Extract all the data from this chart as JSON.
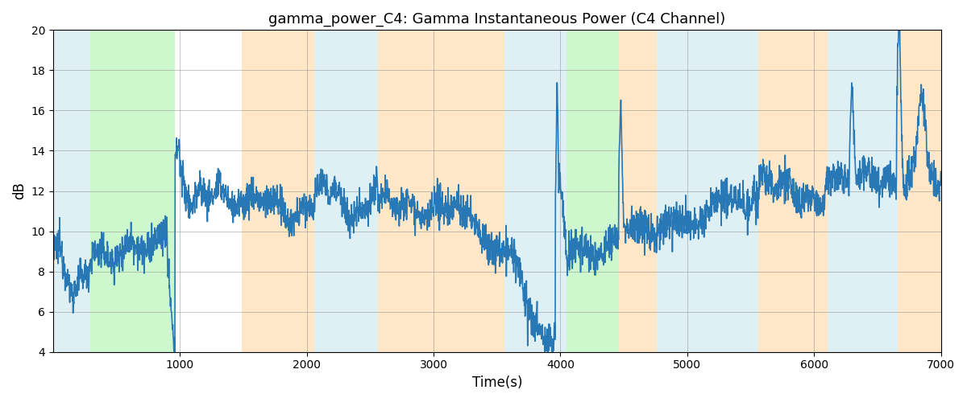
{
  "title": "gamma_power_C4: Gamma Instantaneous Power (C4 Channel)",
  "xlabel": "Time(s)",
  "ylabel": "dB",
  "xlim": [
    0,
    7000
  ],
  "ylim": [
    4,
    20
  ],
  "yticks": [
    4,
    6,
    8,
    10,
    12,
    14,
    16,
    18,
    20
  ],
  "xticks": [
    1000,
    2000,
    3000,
    4000,
    5000,
    6000,
    7000
  ],
  "line_color": "#2878b5",
  "line_width": 1.2,
  "bg_bands": [
    {
      "xmin": 0,
      "xmax": 290,
      "color": "#add8e6",
      "alpha": 0.38
    },
    {
      "xmin": 290,
      "xmax": 960,
      "color": "#90ee90",
      "alpha": 0.45
    },
    {
      "xmin": 1490,
      "xmax": 2060,
      "color": "#ffd59a",
      "alpha": 0.55
    },
    {
      "xmin": 2060,
      "xmax": 2560,
      "color": "#add8e6",
      "alpha": 0.38
    },
    {
      "xmin": 2560,
      "xmax": 3560,
      "color": "#ffd59a",
      "alpha": 0.55
    },
    {
      "xmin": 3560,
      "xmax": 4050,
      "color": "#add8e6",
      "alpha": 0.38
    },
    {
      "xmin": 4050,
      "xmax": 4460,
      "color": "#90ee90",
      "alpha": 0.45
    },
    {
      "xmin": 4460,
      "xmax": 4760,
      "color": "#ffd59a",
      "alpha": 0.55
    },
    {
      "xmin": 4760,
      "xmax": 5560,
      "color": "#add8e6",
      "alpha": 0.38
    },
    {
      "xmin": 5560,
      "xmax": 6110,
      "color": "#ffd59a",
      "alpha": 0.55
    },
    {
      "xmin": 6110,
      "xmax": 6660,
      "color": "#add8e6",
      "alpha": 0.38
    },
    {
      "xmin": 6660,
      "xmax": 7000,
      "color": "#ffd59a",
      "alpha": 0.55
    }
  ]
}
